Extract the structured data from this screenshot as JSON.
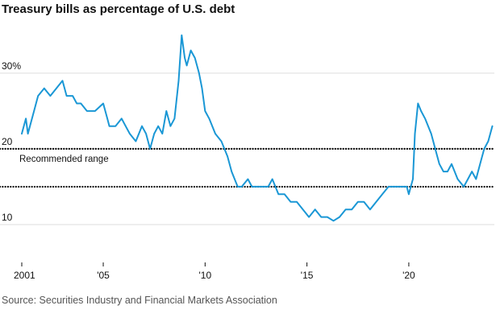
{
  "chart_data": {
    "type": "line",
    "title": "Treasury bills as percentage of U.S. debt",
    "source": "Source: Securities Industry and Financial Markets Association",
    "xlabel": "",
    "ylabel": "",
    "xlim": [
      2001,
      2024.2
    ],
    "ylim": [
      5,
      37
    ],
    "y_ticks": [
      10,
      20,
      30
    ],
    "y_tick_labels": [
      "10",
      "20",
      "30%"
    ],
    "x_ticks": [
      2001,
      2005,
      2010,
      2015,
      2020
    ],
    "x_tick_labels": [
      "2001",
      "'05",
      "'10",
      "'15",
      "'20"
    ],
    "grid": "horizontal",
    "reference_band": {
      "label": "Recommended range",
      "lower": 15,
      "upper": 20
    },
    "colors": {
      "series": "#1a97d5",
      "reference": "#000000",
      "grid": "#dddddd"
    },
    "series": [
      {
        "x": [
          2001.0,
          2001.2,
          2001.3,
          2001.6,
          2001.8,
          2002.1,
          2002.4,
          2002.7,
          2003.0,
          2003.2,
          2003.5,
          2003.7,
          2003.9,
          2004.2,
          2004.6,
          2005.0,
          2005.2,
          2005.3,
          2005.6,
          2005.9,
          2006.1,
          2006.3,
          2006.6,
          2006.9,
          2007.1,
          2007.3,
          2007.5,
          2007.7,
          2007.9,
          2008.1,
          2008.3,
          2008.5,
          2008.7,
          2008.85,
          2009.0,
          2009.1,
          2009.3,
          2009.5,
          2009.7,
          2009.85,
          2010.0,
          2010.2,
          2010.5,
          2010.8,
          2011.1,
          2011.3,
          2011.6,
          2011.8,
          2012.1,
          2012.3,
          2012.6,
          2012.9,
          2013.1,
          2013.3,
          2013.6,
          2013.9,
          2014.2,
          2014.5,
          2014.8,
          2015.1,
          2015.4,
          2015.7,
          2016.0,
          2016.3,
          2016.6,
          2016.9,
          2017.2,
          2017.5,
          2017.8,
          2018.1,
          2018.4,
          2018.7,
          2019.0,
          2019.3,
          2019.6,
          2019.9,
          2020.0,
          2020.1,
          2020.2,
          2020.3,
          2020.45,
          2020.6,
          2020.8,
          2021.1,
          2021.3,
          2021.5,
          2021.7,
          2021.9,
          2022.1,
          2022.4,
          2022.7,
          2022.9,
          2023.1,
          2023.3,
          2023.5,
          2023.7,
          2023.9,
          2024.1
        ],
        "values": [
          22,
          24,
          22,
          25,
          27,
          28,
          27,
          28,
          29,
          27,
          27,
          26,
          26,
          25,
          25,
          26,
          24,
          23,
          23,
          24,
          23,
          22,
          21,
          23,
          22,
          20,
          22,
          23,
          22,
          25,
          23,
          24,
          29,
          35,
          32,
          31,
          33,
          32,
          30,
          28,
          25,
          24,
          22,
          21,
          19,
          17,
          15,
          15,
          16,
          15,
          15,
          15,
          15,
          16,
          14,
          14,
          13,
          13,
          12,
          11,
          12,
          11,
          11,
          10.5,
          11,
          12,
          12,
          13,
          13,
          12,
          13,
          14,
          15,
          15,
          15,
          15,
          14,
          15,
          16,
          22,
          26,
          25,
          24,
          22,
          20,
          18,
          17,
          17,
          18,
          16,
          15,
          16,
          17,
          16,
          18,
          20,
          21,
          23
        ]
      }
    ]
  }
}
